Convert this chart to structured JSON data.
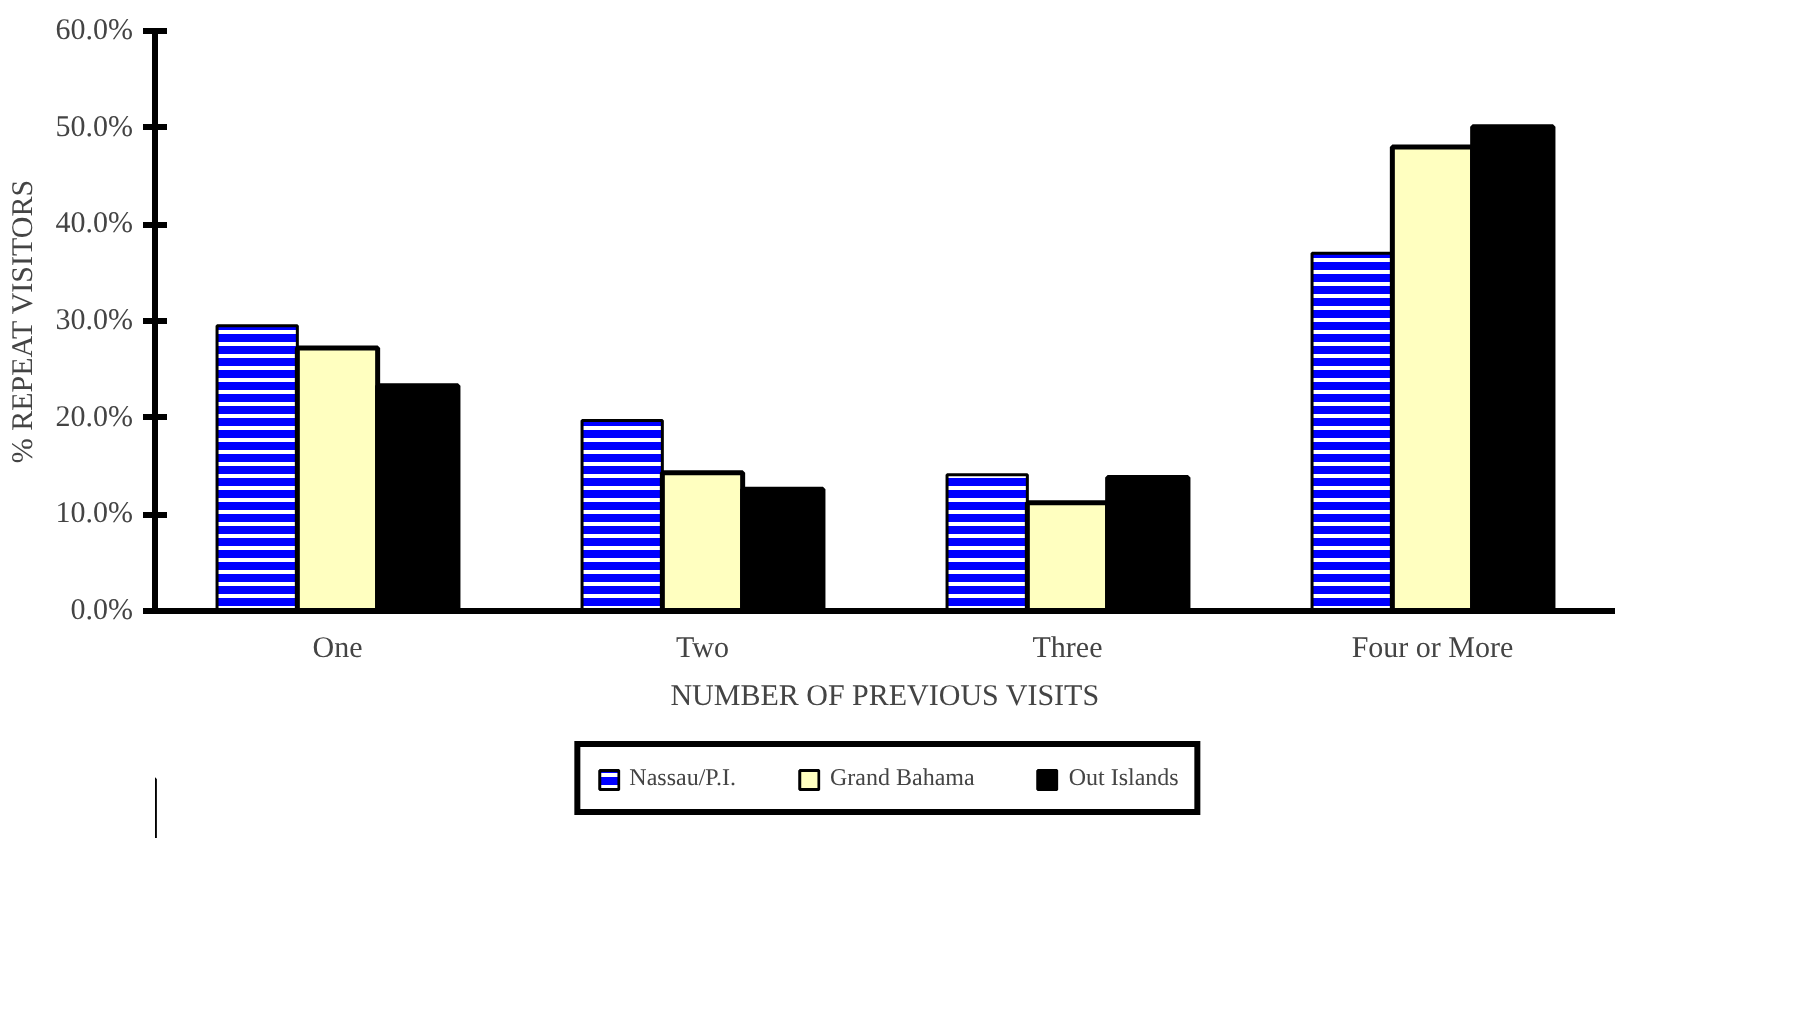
{
  "chart_data": {
    "type": "bar",
    "xlabel": "NUMBER OF PREVIOUS VISITS",
    "ylabel": "% REPEAT VISITORS",
    "categories": [
      "One",
      "Two",
      "Three",
      "Four or More"
    ],
    "series": [
      {
        "name": "Nassau/P.I.",
        "color": "#0000ff",
        "values": [
          29.5,
          19.7,
          14.1,
          37.0
        ]
      },
      {
        "name": "Grand Bahama",
        "color": "#ffffc0",
        "values": [
          27.2,
          14.3,
          11.2,
          48.0
        ]
      },
      {
        "name": "Out Islands",
        "color": "#000000",
        "values": [
          23.3,
          12.6,
          13.8,
          50.1
        ]
      }
    ],
    "ylim": [
      0,
      60
    ],
    "yticks": [
      {
        "value": 0,
        "label": "0.0%"
      },
      {
        "value": 10,
        "label": "10.0%"
      },
      {
        "value": 20,
        "label": "20.0%"
      },
      {
        "value": 30,
        "label": "30.0%"
      },
      {
        "value": 40,
        "label": "40.0%"
      },
      {
        "value": 50,
        "label": "50.0%"
      },
      {
        "value": 60,
        "label": "60.0%"
      }
    ],
    "grid": false,
    "legend": "bottom"
  }
}
